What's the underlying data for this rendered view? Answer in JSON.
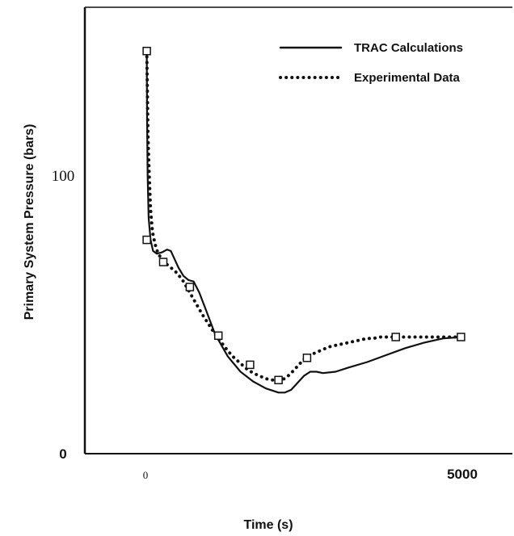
{
  "chart_data": {
    "type": "line",
    "xlabel": "Time (s)",
    "ylabel": "Primary System Pressure (bars)",
    "xlim": [
      0,
      5400
    ],
    "ylim": [
      0,
      155
    ],
    "x_ticks": [
      {
        "value": 0,
        "label": "0",
        "style": "serif"
      },
      {
        "value": 5000,
        "label": "5000",
        "style": "bold"
      }
    ],
    "y_ticks": [
      {
        "value": 0,
        "label": "0",
        "style": "bold"
      },
      {
        "value": 100,
        "label": "100",
        "style": "serif"
      }
    ],
    "grid": false,
    "legend_position": "top-right",
    "series": [
      {
        "name": "TRAC Calculations",
        "style": "solid",
        "color": "#111111",
        "x": [
          20,
          25,
          35,
          50,
          80,
          120,
          180,
          260,
          340,
          400,
          460,
          520,
          600,
          680,
          760,
          850,
          950,
          1100,
          1300,
          1500,
          1700,
          1900,
          2100,
          2200,
          2300,
          2400,
          2500,
          2600,
          2700,
          2800,
          3000,
          3200,
          3500,
          3800,
          4100,
          4400,
          4700,
          5000
        ],
        "y": [
          145,
          120,
          100,
          85,
          77,
          73,
          72,
          72.5,
          73.5,
          73,
          70,
          67,
          64,
          62.5,
          62,
          58,
          52,
          43,
          35,
          29.5,
          26,
          23.5,
          22,
          22,
          23,
          25.5,
          28,
          29.5,
          29.5,
          29,
          29.5,
          31,
          33,
          35.5,
          38,
          40,
          41.5,
          42
        ]
      },
      {
        "name": "Experimental Data",
        "style": "dotted",
        "color": "#111111",
        "x": [
          20,
          30,
          40,
          60,
          80,
          110,
          150,
          200,
          260,
          320,
          400,
          500,
          600,
          700,
          800,
          900,
          1000,
          1100,
          1200,
          1300,
          1400,
          1500,
          1600,
          1700,
          1800,
          1900,
          2000,
          2100,
          2200,
          2300,
          2400,
          2500,
          2600,
          2700,
          2800,
          2900,
          3000,
          3100,
          3200,
          3300,
          3400,
          3500,
          3600,
          3700,
          3800,
          3900,
          4000,
          4100,
          4200,
          4300,
          4400,
          4500,
          4600,
          4700,
          4800,
          4900,
          5000
        ],
        "y": [
          145,
          130,
          115,
          100,
          88,
          80,
          75.5,
          72,
          70,
          68.5,
          67,
          65,
          62,
          58,
          54,
          50,
          46.5,
          43,
          40,
          37,
          34.5,
          32.5,
          30.5,
          29,
          28,
          27,
          26.5,
          26.5,
          27,
          29,
          31.5,
          34,
          35.5,
          36.5,
          37.5,
          38.5,
          39,
          39.5,
          40,
          40.5,
          41,
          41.5,
          41.5,
          42,
          42,
          42,
          42,
          42,
          42,
          42,
          42,
          42,
          42,
          42,
          42,
          42,
          42
        ]
      }
    ],
    "markers": {
      "shape": "open-square",
      "points": [
        {
          "x": 20,
          "y": 145
        },
        {
          "x": 20,
          "y": 77
        },
        {
          "x": 280,
          "y": 69
        },
        {
          "x": 700,
          "y": 60
        },
        {
          "x": 1150,
          "y": 42.5
        },
        {
          "x": 1650,
          "y": 32
        },
        {
          "x": 2100,
          "y": 26.5
        },
        {
          "x": 2550,
          "y": 34.5
        },
        {
          "x": 3950,
          "y": 42
        },
        {
          "x": 4980,
          "y": 42
        }
      ]
    }
  }
}
